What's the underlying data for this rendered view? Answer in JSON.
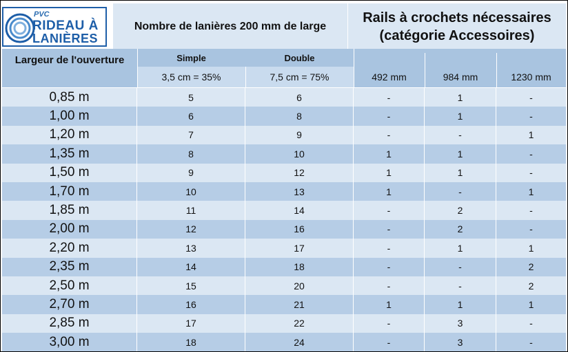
{
  "logo": {
    "brand_small": "PVC",
    "line1": "RIDEAU À",
    "line2": "LANIÈRES"
  },
  "title_left": "Nombre de lanières 200 mm de large",
  "title_right": {
    "line1": "Rails à crochets nécessaires",
    "line2": "(catégorie Accessoires)"
  },
  "headers": {
    "opening": "Largeur de l'ouverture",
    "simple": "Simple",
    "double": "Double",
    "simple_sub": "3,5 cm = 35%",
    "double_sub": "7,5 cm = 75%",
    "rail1": "492 mm",
    "rail2": "984 mm",
    "rail3": "1230 mm"
  },
  "rows": [
    [
      "0,85 m",
      "5",
      "6",
      "-",
      "1",
      "-"
    ],
    [
      "1,00 m",
      "6",
      "8",
      "-",
      "1",
      "-"
    ],
    [
      "1,20 m",
      "7",
      "9",
      "-",
      "-",
      "1"
    ],
    [
      "1,35 m",
      "8",
      "10",
      "1",
      "1",
      "-"
    ],
    [
      "1,50 m",
      "9",
      "12",
      "1",
      "1",
      "-"
    ],
    [
      "1,70 m",
      "10",
      "13",
      "1",
      "-",
      "1"
    ],
    [
      "1,85 m",
      "11",
      "14",
      "-",
      "2",
      "-"
    ],
    [
      "2,00 m",
      "12",
      "16",
      "-",
      "2",
      "-"
    ],
    [
      "2,20 m",
      "13",
      "17",
      "-",
      "1",
      "1"
    ],
    [
      "2,35 m",
      "14",
      "18",
      "-",
      "-",
      "2"
    ],
    [
      "2,50 m",
      "15",
      "20",
      "-",
      "-",
      "2"
    ],
    [
      "2,70 m",
      "16",
      "21",
      "1",
      "1",
      "1"
    ],
    [
      "2,85 m",
      "17",
      "22",
      "-",
      "3",
      "-"
    ],
    [
      "3,00 m",
      "18",
      "24",
      "-",
      "3",
      "-"
    ]
  ]
}
